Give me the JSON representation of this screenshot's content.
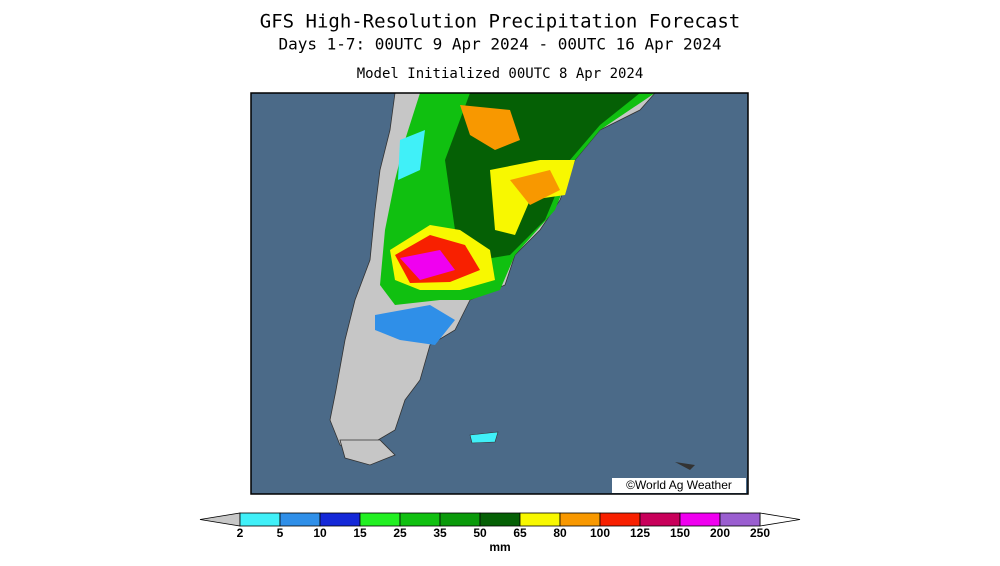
{
  "title": "GFS High-Resolution Precipitation Forecast",
  "subtitle": "Days 1-7: 00UTC 9 Apr 2024 - 00UTC 16 Apr 2024",
  "initialized": "Model Initialized 00UTC 8 Apr 2024",
  "credit": "©World Ag Weather",
  "colorbar": {
    "ticks": [
      2,
      5,
      10,
      15,
      25,
      35,
      50,
      65,
      80,
      100,
      125,
      150,
      200,
      250
    ],
    "colors": [
      "#40f0f8",
      "#2f8fe8",
      "#1428d8",
      "#22f022",
      "#10c010",
      "#0a9a0a",
      "#056005",
      "#f8f800",
      "#f89800",
      "#f82000",
      "#c8005a",
      "#f000f0",
      "#9a5ed0"
    ],
    "below_color": "#c8c8c8",
    "above_color": "#ffffff",
    "unit": "mm"
  }
}
